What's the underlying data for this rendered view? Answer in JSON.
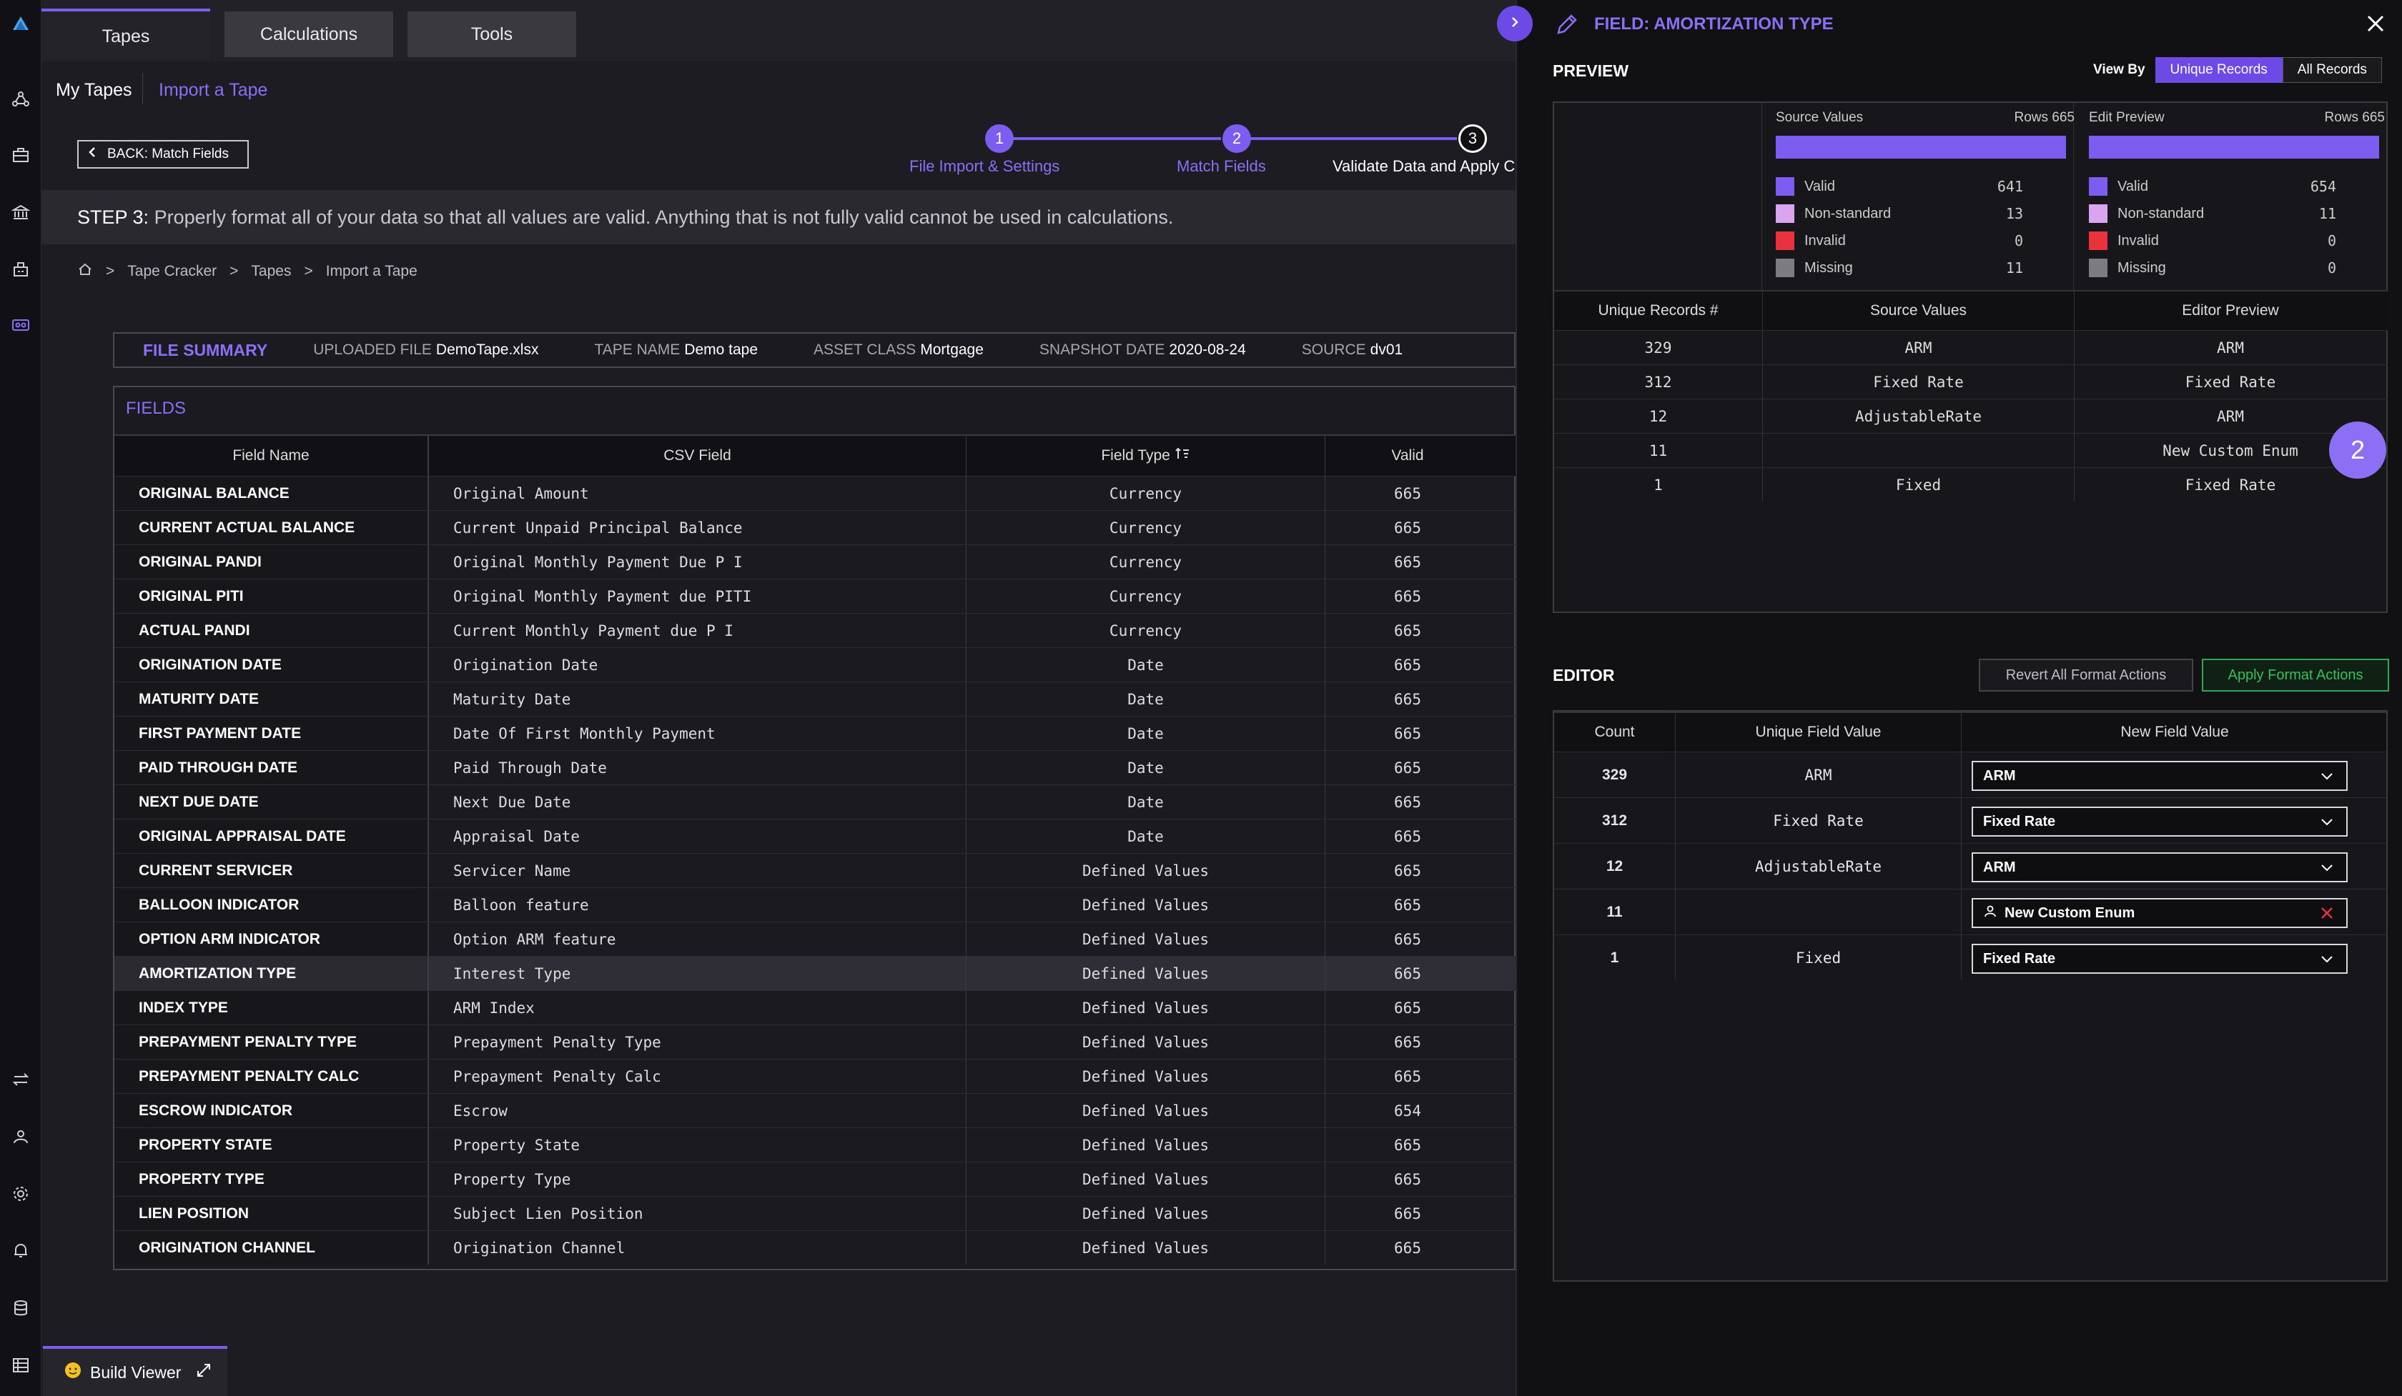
{
  "tabs": [
    {
      "label": "Tapes"
    },
    {
      "label": "Calculations"
    },
    {
      "label": "Tools"
    }
  ],
  "subnav": {
    "my_tapes": "My Tapes",
    "import": "Import a Tape"
  },
  "back_label": "BACK: Match Fields",
  "steps": [
    {
      "num": "1",
      "label": "File Import & Settings"
    },
    {
      "num": "2",
      "label": "Match Fields"
    },
    {
      "num": "3",
      "label": "Validate Data and Apply C"
    }
  ],
  "step_text": {
    "prefix": "STEP 3:",
    "text": "Properly format all of your data so that all values are valid. Anything that is not fully valid cannot be used in calculations."
  },
  "breadcrumb": [
    "Tape Cracker",
    "Tapes",
    "Import a Tape"
  ],
  "file_summary": {
    "title": "FILE SUMMARY",
    "uploaded_label": "UPLOADED FILE",
    "uploaded": "DemoTape.xlsx",
    "tape_label": "TAPE NAME",
    "tape": "Demo tape",
    "asset_label": "ASSET CLASS",
    "asset": "Mortgage",
    "snapshot_label": "SNAPSHOT DATE",
    "snapshot": "2020-08-24",
    "source_label": "SOURCE",
    "source": "dv01"
  },
  "fields": {
    "title": "FIELDS",
    "headers": [
      "Field Name",
      "CSV Field",
      "Field Type",
      "Valid"
    ],
    "rows": [
      [
        "ORIGINAL BALANCE",
        "Original Amount",
        "Currency",
        "665"
      ],
      [
        "CURRENT ACTUAL BALANCE",
        "Current Unpaid Principal Balance",
        "Currency",
        "665"
      ],
      [
        "ORIGINAL PANDI",
        "Original Monthly Payment Due P I",
        "Currency",
        "665"
      ],
      [
        "ORIGINAL PITI",
        "Original Monthly Payment due PITI",
        "Currency",
        "665"
      ],
      [
        "ACTUAL PANDI",
        "Current Monthly Payment due P I",
        "Currency",
        "665"
      ],
      [
        "ORIGINATION DATE",
        "Origination Date",
        "Date",
        "665"
      ],
      [
        "MATURITY DATE",
        "Maturity Date",
        "Date",
        "665"
      ],
      [
        "FIRST PAYMENT DATE",
        "Date Of First Monthly Payment",
        "Date",
        "665"
      ],
      [
        "PAID THROUGH DATE",
        "Paid Through Date",
        "Date",
        "665"
      ],
      [
        "NEXT DUE DATE",
        "Next Due Date",
        "Date",
        "665"
      ],
      [
        "ORIGINAL APPRAISAL DATE",
        "Appraisal Date",
        "Date",
        "665"
      ],
      [
        "CURRENT SERVICER",
        "Servicer Name",
        "Defined Values",
        "665"
      ],
      [
        "BALLOON INDICATOR",
        "Balloon feature",
        "Defined Values",
        "665"
      ],
      [
        "OPTION ARM INDICATOR",
        "Option ARM feature",
        "Defined Values",
        "665"
      ],
      [
        "AMORTIZATION TYPE",
        "Interest Type",
        "Defined Values",
        "665"
      ],
      [
        "INDEX TYPE",
        "ARM Index",
        "Defined Values",
        "665"
      ],
      [
        "PREPAYMENT PENALTY TYPE",
        "Prepayment Penalty Type",
        "Defined Values",
        "665"
      ],
      [
        "PREPAYMENT PENALTY CALC",
        "Prepayment Penalty Calc",
        "Defined Values",
        "665"
      ],
      [
        "ESCROW INDICATOR",
        "Escrow",
        "Defined Values",
        "654"
      ],
      [
        "PROPERTY STATE",
        "Property State",
        "Defined Values",
        "665"
      ],
      [
        "PROPERTY TYPE",
        "Property Type",
        "Defined Values",
        "665"
      ],
      [
        "LIEN POSITION",
        "Subject Lien Position",
        "Defined Values",
        "665"
      ],
      [
        "ORIGINATION CHANNEL",
        "Origination Channel",
        "Defined Values",
        "665"
      ]
    ]
  },
  "build_viewer": "Build Viewer",
  "panel": {
    "title": "FIELD: AMORTIZATION TYPE",
    "preview_title": "PREVIEW",
    "view_by_label": "View By",
    "view_by_options": [
      "Unique Records",
      "All Records"
    ],
    "source": {
      "label": "Source Values",
      "rows": "Rows 665",
      "valid": "641",
      "nonstandard": "13",
      "invalid": "0",
      "missing": "11"
    },
    "edit": {
      "label": "Edit Preview",
      "rows": "Rows 665",
      "valid": "654",
      "nonstandard": "11",
      "invalid": "0",
      "missing": "0"
    },
    "legend_labels": [
      "Valid",
      "Non-standard",
      "Invalid",
      "Missing"
    ],
    "legend_colors": [
      "#7d5cf0",
      "#d9a5ee",
      "#e8323c",
      "#7c7c80"
    ],
    "preview_headers": [
      "Unique Records #",
      "Source Values",
      "Editor Preview"
    ],
    "preview_rows": [
      [
        "329",
        "ARM",
        "ARM"
      ],
      [
        "312",
        "Fixed Rate",
        "Fixed Rate"
      ],
      [
        "12",
        "AdjustableRate",
        "ARM"
      ],
      [
        "11",
        "",
        "New Custom Enum"
      ],
      [
        "1",
        "Fixed",
        "Fixed Rate"
      ]
    ],
    "badge": "2",
    "editor_title": "EDITOR",
    "revert_label": "Revert All Format Actions",
    "apply_label": "Apply Format Actions",
    "editor_headers": [
      "Count",
      "Unique Field Value",
      "New Field Value"
    ],
    "editor_rows": [
      {
        "count": "329",
        "value": "ARM",
        "new": "ARM",
        "custom": false
      },
      {
        "count": "312",
        "value": "Fixed Rate",
        "new": "Fixed Rate",
        "custom": false
      },
      {
        "count": "12",
        "value": "AdjustableRate",
        "new": "ARM",
        "custom": false
      },
      {
        "count": "11",
        "value": "",
        "new": "New Custom Enum",
        "custom": true
      },
      {
        "count": "1",
        "value": "Fixed",
        "new": "Fixed Rate",
        "custom": false
      }
    ]
  }
}
